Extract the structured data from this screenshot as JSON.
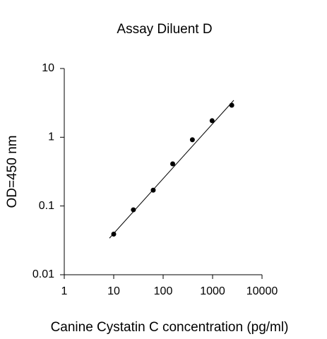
{
  "chart_data": {
    "type": "scatter",
    "title": "Assay Diluent D",
    "x_label": "Canine Cystatin C concentration (pg/ml)",
    "y_label": "OD=450 nm",
    "x": [
      10,
      25,
      63,
      156,
      390,
      977,
      2441
    ],
    "values": [
      0.039,
      0.088,
      0.17,
      0.41,
      0.92,
      1.74,
      2.92
    ],
    "color": "#000000",
    "fit_line": {
      "x": [
        8.2,
        2683
      ],
      "values": [
        0.034,
        3.45
      ],
      "color": "#000000"
    },
    "x_log": true,
    "y_log": true,
    "xlim": [
      1,
      10000
    ],
    "xticks": [
      1,
      10,
      100,
      1000,
      10000
    ],
    "ylim": [
      0.01,
      10
    ],
    "yticks": [
      0.01,
      0.1,
      1,
      10
    ]
  }
}
